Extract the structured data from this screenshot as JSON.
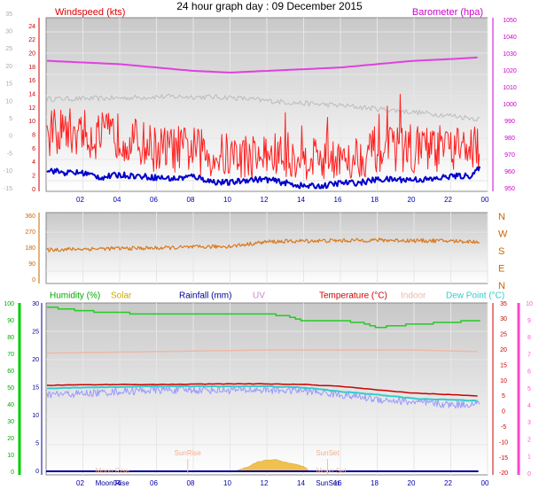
{
  "title": "24 hour graph day : 09 December 2015",
  "x_ticks": [
    "02",
    "04",
    "06",
    "08",
    "10",
    "12",
    "14",
    "16",
    "18",
    "20",
    "22",
    "00"
  ],
  "colors": {
    "windspeed": "#dd0000",
    "gust": "#ff2020",
    "wind_avg": "#0000cc",
    "barometer": "#e040e0",
    "temp_grey": "#bbbbbb",
    "direction": "#d97a1e",
    "humidity": "#00bb00",
    "solar": "#ccaa00",
    "rainfall": "#000099",
    "uv": "#cc88cc",
    "temperature": "#cc0000",
    "indoor": "#f0b8a8",
    "dewpoint": "#33cccc",
    "feels": "#9999ff",
    "solar_fill": "#f0c050"
  },
  "chart_data": [
    {
      "type": "line",
      "labels": {
        "left": "Windspeed (kts)",
        "right": "Barometer (hpa)"
      },
      "outer_left_ticks": [
        "35",
        "30",
        "25",
        "20",
        "15",
        "10",
        "5",
        "0",
        "-5",
        "-10",
        "-15"
      ],
      "inner_left_ticks": [
        "24",
        "22",
        "20",
        "18",
        "16",
        "14",
        "12",
        "10",
        "8",
        "6",
        "4",
        "2",
        "0"
      ],
      "right_ticks": [
        "1050",
        "1040",
        "1030",
        "1020",
        "1010",
        "1000",
        "990",
        "980",
        "970",
        "960",
        "950"
      ],
      "ylim_wind": [
        0,
        25
      ],
      "ylim_baro": [
        950,
        1050
      ],
      "series": [
        {
          "name": "Barometer (hpa)",
          "x": [
            0,
            2,
            4,
            6,
            8,
            10,
            12,
            14,
            16,
            18,
            20,
            22,
            23.5
          ],
          "values": [
            1026,
            1025,
            1024,
            1022,
            1020,
            1019,
            1020,
            1021,
            1022,
            1024,
            1026,
            1027,
            1028
          ]
        },
        {
          "x": [
            0,
            2,
            4,
            6,
            8,
            10,
            12,
            14,
            16,
            18,
            20,
            22,
            23.5
          ],
          "values": [
            13.5,
            13.5,
            13.6,
            13.8,
            13.8,
            13.7,
            13.2,
            12.8,
            12.5,
            12.0,
            11.5,
            11.0,
            10.5
          ]
        },
        {
          "name": "Windspeed (kts)",
          "x": [
            0,
            1,
            2,
            3,
            4,
            5,
            6,
            7,
            8,
            9,
            10,
            11,
            12,
            13,
            14,
            15,
            16,
            17,
            18,
            19,
            20,
            21,
            22,
            23,
            23.5
          ],
          "values": [
            8,
            9,
            8,
            8,
            8,
            7,
            6,
            6,
            6,
            5,
            5,
            5,
            5,
            5,
            5,
            5,
            5,
            5,
            6,
            6,
            6,
            6,
            6,
            6,
            6
          ]
        },
        {
          "x": [
            0,
            1,
            2,
            3,
            4,
            5,
            6,
            7,
            8,
            9,
            10,
            11,
            12,
            13,
            14,
            15,
            16,
            17,
            18,
            19,
            20,
            21,
            22,
            23,
            23.5
          ],
          "values": [
            3,
            2.5,
            2.5,
            1.8,
            2.2,
            2,
            1.8,
            1.6,
            2,
            1.2,
            1,
            1.5,
            1.5,
            1,
            0.5,
            0.5,
            1,
            1,
            1.5,
            1.5,
            1.5,
            1.5,
            2,
            2,
            3
          ]
        }
      ]
    },
    {
      "type": "line",
      "left_ticks": [
        "360",
        "270",
        "180",
        "90",
        "0"
      ],
      "right_ticks": [
        "N",
        "W",
        "S",
        "E",
        "N"
      ],
      "ylim": [
        0,
        360
      ],
      "series": [
        {
          "x": [
            0,
            2,
            4,
            6,
            8,
            10,
            12,
            14,
            16,
            18,
            20,
            22,
            23.5
          ],
          "values": [
            170,
            175,
            178,
            180,
            185,
            190,
            215,
            220,
            222,
            225,
            222,
            220,
            215
          ]
        }
      ]
    },
    {
      "type": "line",
      "legend": [
        {
          "name": "Humidity (%)",
          "color": "#00aa00"
        },
        {
          "name": "Solar",
          "color": "#ccaa00"
        },
        {
          "name": "Rainfall (mm)",
          "color": "#000099"
        },
        {
          "name": "UV",
          "color": "#cc88cc"
        },
        {
          "name": "Temperature (°C)",
          "color": "#cc0000"
        },
        {
          "name": "Indoor",
          "color": "#f0b8a8"
        },
        {
          "name": "Dew Point (°C)",
          "color": "#33cccc"
        }
      ],
      "outer_left_ticks": [
        "100",
        "90",
        "80",
        "70",
        "60",
        "50",
        "40",
        "30",
        "20",
        "10",
        "0"
      ],
      "inner_left_ticks": [
        "30",
        "25",
        "20",
        "15",
        "10",
        "5",
        "0"
      ],
      "outer_right_ticks": [
        "10",
        "9",
        "8",
        "7",
        "6",
        "5",
        "4",
        "3",
        "2",
        "1",
        "0"
      ],
      "inner_right_ticks": [
        "35",
        "30",
        "25",
        "20",
        "15",
        "10",
        "5",
        "0",
        "-5",
        "-10",
        "-15",
        "-20"
      ],
      "ylim_humidity": [
        0,
        100
      ],
      "ylim_temp": [
        -20,
        35
      ],
      "annotations": [
        {
          "text": "SunRise",
          "x": 7.7,
          "row": "upper"
        },
        {
          "text": "SunSet",
          "x": 15.3,
          "row": "upper"
        },
        {
          "text": "Moon Rise",
          "x": 3.6,
          "row": "middle"
        },
        {
          "text": "Moon Set",
          "x": 15.5,
          "row": "middle"
        },
        {
          "text": "Moon Rise",
          "x": 3.6,
          "row": "lower"
        },
        {
          "text": "SunSet",
          "x": 15.3,
          "row": "lower"
        }
      ],
      "series": [
        {
          "name": "Humidity (%)",
          "x": [
            0,
            2,
            3,
            6,
            10,
            12,
            13,
            14,
            16,
            17,
            18,
            20,
            22,
            23,
            23.5
          ],
          "values": [
            98,
            96,
            95,
            94,
            94,
            94,
            93,
            90,
            90,
            89,
            86,
            88,
            89,
            90,
            90
          ]
        },
        {
          "name": "Indoor",
          "x": [
            0,
            6,
            12,
            16,
            20,
            23.5
          ],
          "values": [
            19,
            19.5,
            20,
            20,
            20,
            19.5
          ]
        },
        {
          "name": "Temperature (°C)",
          "x": [
            0,
            2,
            4,
            6,
            8,
            10,
            12,
            14,
            16,
            18,
            20,
            22,
            23.5
          ],
          "values": [
            8.5,
            8.7,
            8.8,
            8.8,
            8.9,
            9.0,
            9.0,
            8.8,
            8.2,
            7.0,
            6.0,
            5.5,
            5.0
          ]
        },
        {
          "name": "Dew Point (°C)",
          "x": [
            0,
            2,
            4,
            6,
            8,
            10,
            12,
            14,
            16,
            18,
            20,
            22,
            23.5
          ],
          "values": [
            7.5,
            7.8,
            8.0,
            8.2,
            8.2,
            8.2,
            8.2,
            7.8,
            6.5,
            5.5,
            4.2,
            3.8,
            3.5
          ]
        },
        {
          "x": [
            0,
            2,
            4,
            6,
            8,
            10,
            12,
            14,
            16,
            18,
            20,
            22,
            23.5
          ],
          "values": [
            5.5,
            5.8,
            6.5,
            7.0,
            7.0,
            7.0,
            7.0,
            6.8,
            5.5,
            4.0,
            3.0,
            2.2,
            2.5
          ]
        },
        {
          "name": "Rainfall (mm)",
          "x": [
            0,
            23.5
          ],
          "values": [
            0,
            0
          ]
        },
        {
          "name": "Solar",
          "x": [
            10.3,
            11,
            11.5,
            12,
            12.5,
            13,
            13.5,
            14,
            14.3
          ],
          "values": [
            0,
            1,
            2,
            2.5,
            2.5,
            2,
            1.5,
            1,
            0
          ]
        }
      ]
    }
  ]
}
